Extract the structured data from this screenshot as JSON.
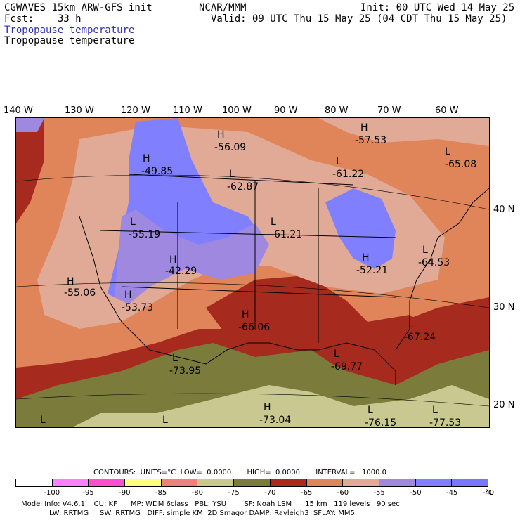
{
  "header": {
    "model": "CGWAVES 15km ARW-GFS init",
    "fcst": "Fcst:    33 h",
    "org": "NCAR/MMM",
    "init": "Init: 00 UTC Wed 14 May 25",
    "valid": "Valid: 09 UTC Thu 15 May 25 (04 CDT Thu 15 May 25)",
    "field1": "Tropopause temperature",
    "field2": "Tropopause temperature"
  },
  "longitudes": [
    "140 W",
    "130 W",
    "120 W",
    "110 W",
    "100 W",
    "90 W",
    "80 W",
    "70 W",
    "60 W"
  ],
  "latitudes": [
    "40 N",
    "30 N",
    "20 N"
  ],
  "map_labels": [
    {
      "letter": "H",
      "value": "-49.85"
    },
    {
      "letter": "H",
      "value": "-56.09"
    },
    {
      "letter": "H",
      "value": "-57.53"
    },
    {
      "letter": "L",
      "value": "-61.22"
    },
    {
      "letter": "L",
      "value": "-62.87"
    },
    {
      "letter": "L",
      "value": "-65.08"
    },
    {
      "letter": "L",
      "value": "-55.19"
    },
    {
      "letter": "L",
      "value": "-61.21"
    },
    {
      "letter": "H",
      "value": "-42.29"
    },
    {
      "letter": "H",
      "value": "-52.21"
    },
    {
      "letter": "L",
      "value": "-64.53"
    },
    {
      "letter": "H",
      "value": "-55.06"
    },
    {
      "letter": "H",
      "value": "-53.73"
    },
    {
      "letter": "H",
      "value": "-66.06"
    },
    {
      "letter": "L",
      "value": "-67.24"
    },
    {
      "letter": "L",
      "value": "-73.95"
    },
    {
      "letter": "L",
      "value": "-69.77"
    },
    {
      "letter": "H",
      "value": "-73.04"
    },
    {
      "letter": "L",
      "value": "-76.15"
    },
    {
      "letter": "L",
      "value": "-77.53"
    },
    {
      "letter": "L",
      "value": ""
    },
    {
      "letter": "L",
      "value": ""
    }
  ],
  "contours": {
    "line": "CONTOURS:  UNITS=°C  LOW=  0.0000       HIGH=  0.0000       INTERVAL=   1000.0"
  },
  "legend": {
    "colors": [
      "#ffffff",
      "#ff80ff",
      "#ff4fd1",
      "#ffff80",
      "#f08080",
      "#c8c890",
      "#7b7b3c",
      "#a62a1e",
      "#e0845a",
      "#e0aa96",
      "#9e88e0",
      "#8080ff",
      "#7878ff"
    ],
    "ticks": [
      "-100",
      "-95",
      "-90",
      "-85",
      "-80",
      "-75",
      "-70",
      "-65",
      "-60",
      "-55",
      "-50",
      "-45",
      "-40"
    ],
    "unit": "°C"
  },
  "footer": {
    "line1": "Model Info: V4.6.1    CU: KF      MP: WDM 6class   PBL: YSU        SF: Noah LSM      15 km   119 levels   90 sec",
    "line2": "LW: RRTMG     SW: RRTMG   DIFF: simple KM: 2D Smagor DAMP: Rayleigh3  SFLAY: MM5"
  }
}
